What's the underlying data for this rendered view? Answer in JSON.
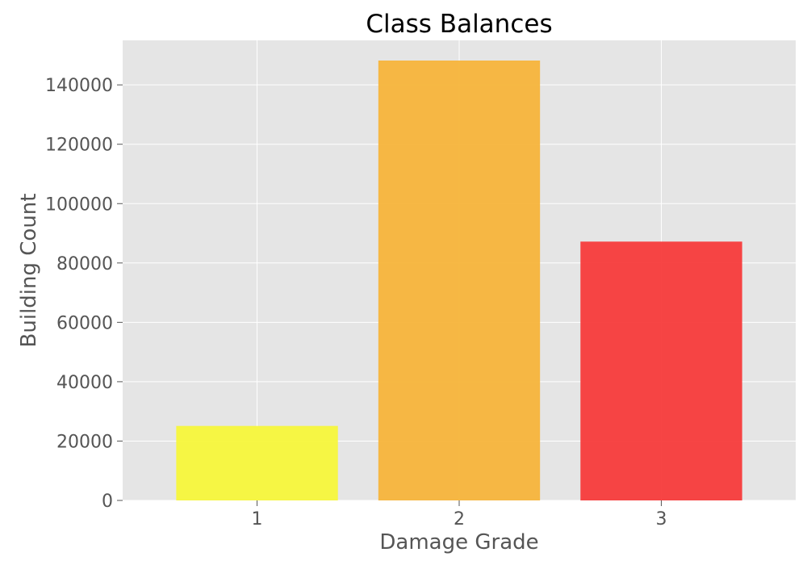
{
  "chart_data": {
    "type": "bar",
    "title": "Class Balances",
    "xlabel": "Damage Grade",
    "ylabel": "Building Count",
    "categories": [
      "1",
      "2",
      "3"
    ],
    "values": [
      25100,
      148200,
      87200
    ],
    "colors": [
      "#f7f73b",
      "#f7b43b",
      "#f73b3b"
    ],
    "ylim": [
      0,
      155000
    ],
    "yticks": [
      0,
      20000,
      40000,
      60000,
      80000,
      100000,
      120000,
      140000
    ],
    "ytick_labels": [
      "0",
      "20000",
      "40000",
      "60000",
      "80000",
      "100000",
      "120000",
      "140000"
    ],
    "grid": true,
    "background": "#e5e5e5",
    "grid_color": "#ffffff"
  }
}
